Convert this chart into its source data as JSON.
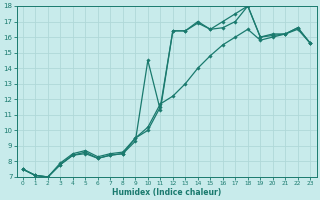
{
  "xlabel": "Humidex (Indice chaleur)",
  "bg_color": "#c8ebeb",
  "grid_color": "#b0d8d8",
  "line_color": "#1a7a6e",
  "xlim": [
    -0.5,
    23.5
  ],
  "ylim": [
    7,
    18
  ],
  "xticks": [
    0,
    1,
    2,
    3,
    4,
    5,
    6,
    7,
    8,
    9,
    10,
    11,
    12,
    13,
    14,
    15,
    16,
    17,
    18,
    19,
    20,
    21,
    22,
    23
  ],
  "yticks": [
    7,
    8,
    9,
    10,
    11,
    12,
    13,
    14,
    15,
    16,
    17,
    18
  ],
  "lines": [
    {
      "x": [
        0,
        1,
        2,
        3,
        4,
        5,
        6,
        7,
        8,
        9,
        10,
        11,
        12,
        13,
        14,
        15,
        16,
        17,
        18,
        19,
        20,
        21,
        22,
        23
      ],
      "y": [
        7.5,
        7.1,
        7.0,
        7.8,
        8.4,
        8.5,
        8.2,
        8.4,
        8.5,
        9.3,
        14.5,
        11.3,
        16.4,
        16.4,
        17.0,
        16.5,
        16.6,
        17.0,
        18.0,
        16.0,
        16.1,
        16.2,
        16.6,
        15.6
      ]
    },
    {
      "x": [
        0,
        1,
        2,
        3,
        4,
        5,
        6,
        7,
        8,
        9,
        10,
        11,
        12,
        13,
        14,
        15,
        16,
        17,
        18,
        19,
        20,
        21,
        22,
        23
      ],
      "y": [
        7.5,
        7.1,
        7.0,
        7.8,
        8.4,
        8.6,
        8.2,
        8.4,
        8.5,
        9.5,
        10.0,
        11.5,
        16.4,
        16.4,
        16.9,
        16.5,
        17.0,
        17.5,
        18.0,
        16.0,
        16.2,
        16.2,
        16.5,
        15.6
      ]
    },
    {
      "x": [
        0,
        1,
        2,
        3,
        4,
        5,
        6,
        7,
        8,
        9,
        10,
        11,
        12,
        13,
        14,
        15,
        16,
        17,
        18,
        19,
        20,
        21,
        22,
        23
      ],
      "y": [
        7.5,
        7.1,
        7.0,
        7.9,
        8.5,
        8.7,
        8.3,
        8.5,
        8.6,
        9.5,
        10.2,
        11.7,
        12.2,
        13.0,
        14.0,
        14.8,
        15.5,
        16.0,
        16.5,
        15.8,
        16.0,
        16.2,
        16.6,
        15.6
      ]
    }
  ]
}
